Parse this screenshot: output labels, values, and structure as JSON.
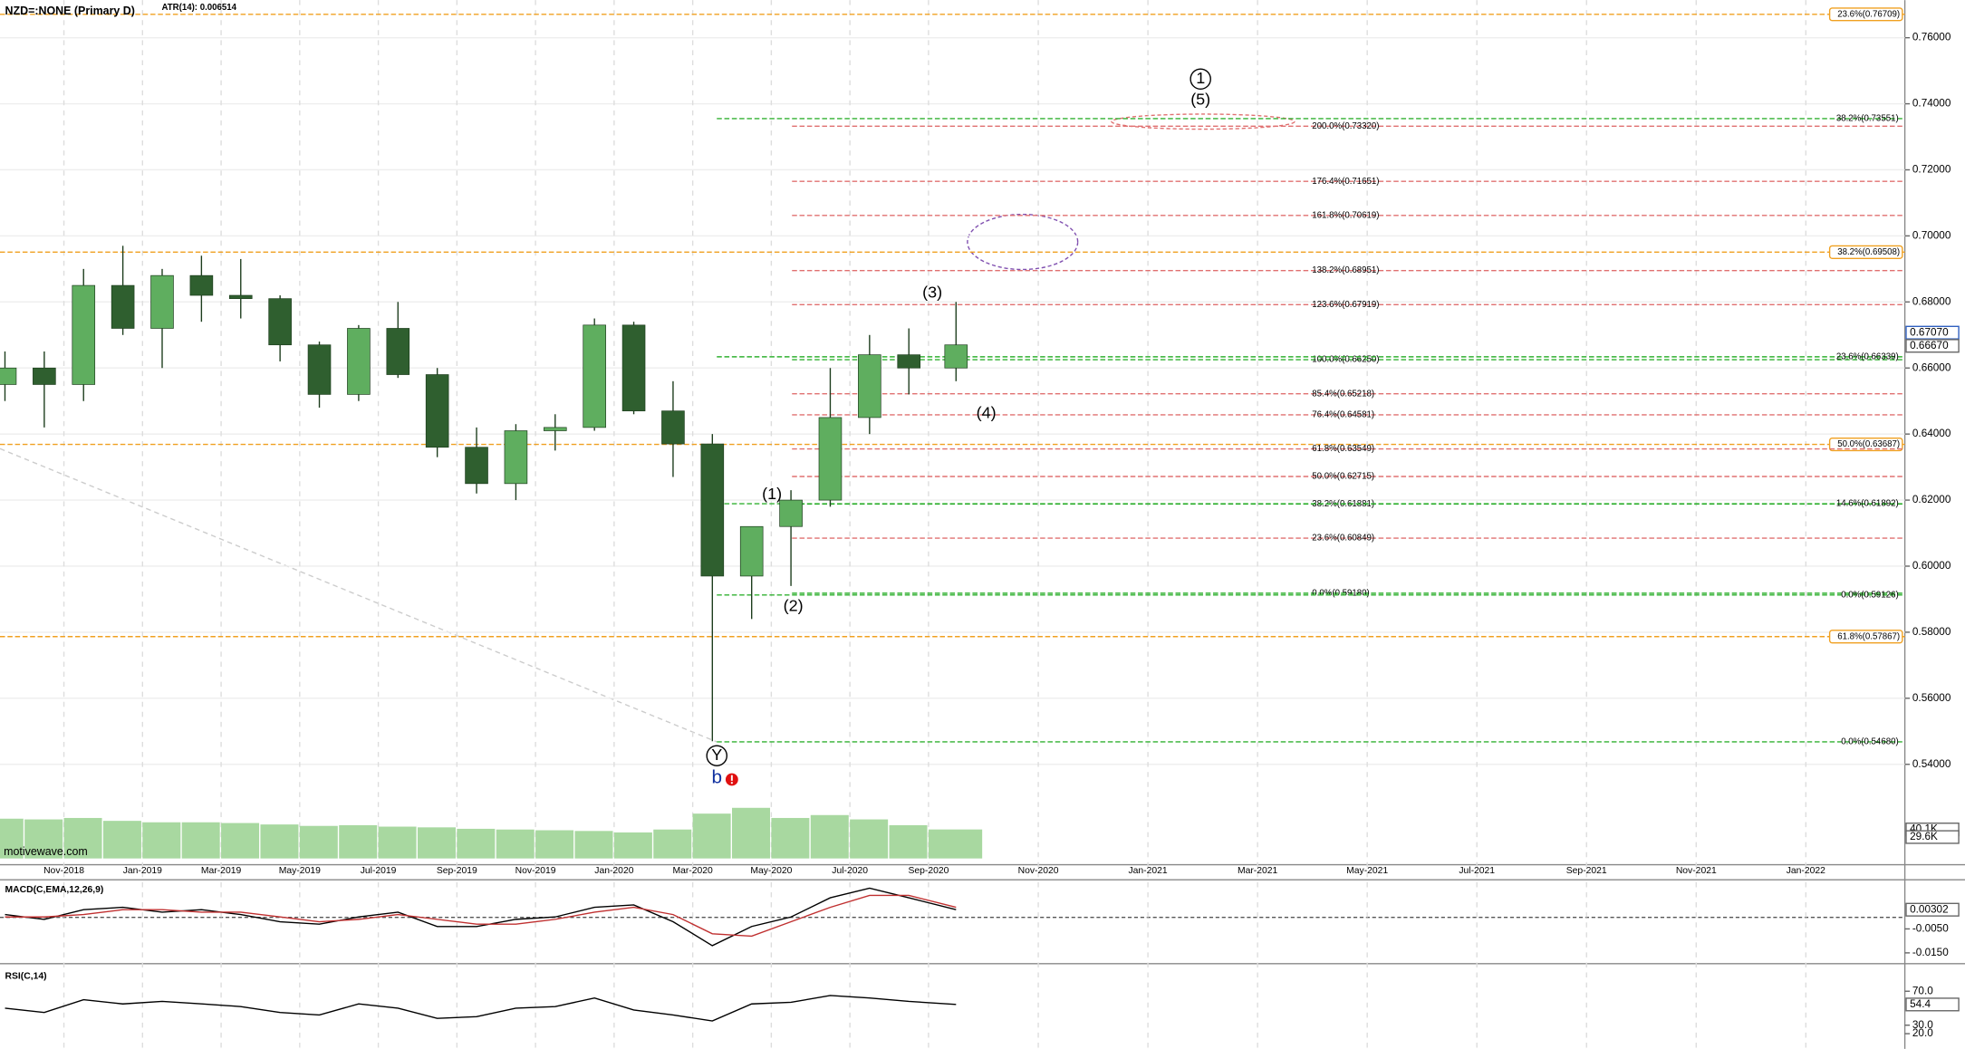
{
  "header": {
    "symbol": "NZD=:NONE (Primary D)",
    "atr": "ATR(14): 0.006514",
    "watermark": "motivewave.com"
  },
  "chart_data": [
    {
      "type": "candlestick",
      "x": [
        "2018-09",
        "2018-10",
        "2018-11",
        "2018-12",
        "2019-01",
        "2019-02",
        "2019-03",
        "2019-04",
        "2019-05",
        "2019-06",
        "2019-07",
        "2019-08",
        "2019-09",
        "2019-10",
        "2019-11",
        "2019-12",
        "2020-01",
        "2020-02",
        "2020-03",
        "2020-04",
        "2020-05",
        "2020-06",
        "2020-07",
        "2020-08",
        "2020-09"
      ],
      "open": [
        0.655,
        0.66,
        0.655,
        0.685,
        0.672,
        0.688,
        0.682,
        0.681,
        0.667,
        0.652,
        0.672,
        0.658,
        0.636,
        0.625,
        0.641,
        0.642,
        0.673,
        0.647,
        0.637,
        0.597,
        0.612,
        0.62,
        0.645,
        0.664,
        0.66
      ],
      "high": [
        0.665,
        0.665,
        0.69,
        0.697,
        0.69,
        0.694,
        0.693,
        0.682,
        0.668,
        0.673,
        0.68,
        0.66,
        0.642,
        0.643,
        0.646,
        0.675,
        0.674,
        0.656,
        0.64,
        0.611,
        0.623,
        0.66,
        0.67,
        0.672,
        0.68
      ],
      "low": [
        0.65,
        0.642,
        0.65,
        0.67,
        0.66,
        0.674,
        0.675,
        0.662,
        0.648,
        0.65,
        0.657,
        0.633,
        0.622,
        0.62,
        0.635,
        0.641,
        0.646,
        0.627,
        0.547,
        0.584,
        0.594,
        0.618,
        0.64,
        0.652,
        0.656
      ],
      "close": [
        0.66,
        0.655,
        0.685,
        0.672,
        0.688,
        0.682,
        0.681,
        0.667,
        0.652,
        0.672,
        0.658,
        0.636,
        0.625,
        0.641,
        0.642,
        0.673,
        0.647,
        0.637,
        0.597,
        0.612,
        0.62,
        0.645,
        0.664,
        0.66,
        0.667
      ],
      "up_color": "#5fae5f",
      "down_color": "#2f5f2f",
      "ylim": [
        0.5096,
        0.7714
      ],
      "yticks": [
        {
          "value": 0.54,
          "label": "0.54000"
        },
        {
          "value": 0.56,
          "label": "0.56000"
        },
        {
          "value": 0.58,
          "label": "0.58000"
        },
        {
          "value": 0.6,
          "label": "0.60000"
        },
        {
          "value": 0.62,
          "label": "0.62000"
        },
        {
          "value": 0.64,
          "label": "0.64000"
        },
        {
          "value": 0.66,
          "label": "0.66000"
        },
        {
          "value": 0.68,
          "label": "0.68000"
        },
        {
          "value": 0.7,
          "label": "0.70000"
        },
        {
          "value": 0.72,
          "label": "0.72000"
        },
        {
          "value": 0.74,
          "label": "0.74000"
        },
        {
          "value": 0.76,
          "label": "0.76000"
        }
      ],
      "xticks": [
        {
          "value": "2018-11",
          "label": "Nov-2018"
        },
        {
          "value": "2019-01",
          "label": "Jan-2019"
        },
        {
          "value": "2019-03",
          "label": "Mar-2019"
        },
        {
          "value": "2019-05",
          "label": "May-2019"
        },
        {
          "value": "2019-07",
          "label": "Jul-2019"
        },
        {
          "value": "2019-09",
          "label": "Sep-2019"
        },
        {
          "value": "2019-11",
          "label": "Nov-2019"
        },
        {
          "value": "2020-01",
          "label": "Jan-2020"
        },
        {
          "value": "2020-03",
          "label": "Mar-2020"
        },
        {
          "value": "2020-05",
          "label": "May-2020"
        },
        {
          "value": "2020-07",
          "label": "Jul-2020"
        },
        {
          "value": "2020-09",
          "label": "Sep-2020"
        },
        {
          "value": "2020-11",
          "label": "Nov-2020"
        },
        {
          "value": "2021-01",
          "label": "Jan-2021"
        },
        {
          "value": "2021-03",
          "label": "Mar-2021"
        },
        {
          "value": "2021-05",
          "label": "May-2021"
        },
        {
          "value": "2021-07",
          "label": "Jul-2021"
        },
        {
          "value": "2021-09",
          "label": "Sep-2021"
        },
        {
          "value": "2021-11",
          "label": "Nov-2021"
        },
        {
          "value": "2022-01",
          "label": "Jan-2022"
        }
      ],
      "grid": true,
      "value_tags": [
        {
          "value": 0.6707,
          "label": "0.67070"
        },
        {
          "value": 0.6667,
          "label": "0.66670"
        }
      ],
      "levels_full": [
        {
          "value": 0.76709,
          "label": "23.6%(0.76709)",
          "color": "#f0a020"
        },
        {
          "value": 0.69508,
          "label": "38.2%(0.69508)",
          "color": "#f0a020"
        },
        {
          "value": 0.63687,
          "label": "50.0%(0.63687)",
          "color": "#f0a020"
        },
        {
          "value": 0.57867,
          "label": "61.8%(0.57867)",
          "color": "#f0a020"
        }
      ],
      "levels_projection": [
        {
          "value": 0.7332,
          "label": "200.0%(0.73320)",
          "color": "#e07070"
        },
        {
          "value": 0.71651,
          "label": "176.4%(0.71651)",
          "color": "#e07070"
        },
        {
          "value": 0.70619,
          "label": "161.8%(0.70619)",
          "color": "#e07070"
        },
        {
          "value": 0.68951,
          "label": "138.2%(0.68951)",
          "color": "#e07070"
        },
        {
          "value": 0.67919,
          "label": "123.6%(0.67919)",
          "color": "#e07070"
        },
        {
          "value": 0.6625,
          "label": "100.0%(0.66250)",
          "color": "#30b030"
        },
        {
          "value": 0.65218,
          "label": "85.4%(0.65218)",
          "color": "#e07070"
        },
        {
          "value": 0.64581,
          "label": "76.4%(0.64581)",
          "color": "#e07070"
        },
        {
          "value": 0.63549,
          "label": "61.8%(0.63549)",
          "color": "#e07070"
        },
        {
          "value": 0.62715,
          "label": "50.0%(0.62715)",
          "color": "#e07070"
        },
        {
          "value": 0.61881,
          "label": "38.2%(0.61881)",
          "color": "#30b030"
        },
        {
          "value": 0.60849,
          "label": "23.6%(0.60849)",
          "color": "#e07070"
        },
        {
          "value": 0.5918,
          "label": "0.0%(0.59180)",
          "color": "#30b030"
        }
      ],
      "levels_retrace": [
        {
          "value": 0.73551,
          "label": "38.2%(0.73551)",
          "color": "#30b030"
        },
        {
          "value": 0.66339,
          "label": "23.6%(0.66339)",
          "color": "#30b030"
        },
        {
          "value": 0.61892,
          "label": "14.6%(0.61892)",
          "color": "#30b030"
        },
        {
          "value": 0.59126,
          "label": "0.0%(0.59126)",
          "color": "#30b030"
        },
        {
          "value": 0.5468,
          "label": "0.0%(0.54680)",
          "color": "#30b030"
        }
      ],
      "wave_labels": [
        "1",
        "(5)",
        "(3)",
        "(4)",
        "(1)",
        "(2)",
        "Y",
        "b"
      ]
    },
    {
      "type": "bar",
      "x": [
        "2018-09",
        "2018-10",
        "2018-11",
        "2018-12",
        "2019-01",
        "2019-02",
        "2019-03",
        "2019-04",
        "2019-05",
        "2019-06",
        "2019-07",
        "2019-08",
        "2019-09",
        "2019-10",
        "2019-11",
        "2019-12",
        "2020-01",
        "2020-02",
        "2020-03",
        "2020-04",
        "2020-05",
        "2020-06",
        "2020-07",
        "2020-08",
        "2020-09"
      ],
      "values": [
        55,
        54,
        56,
        52,
        50,
        50,
        49,
        47,
        45,
        46,
        44,
        43,
        41,
        40,
        39,
        38,
        36,
        40,
        62,
        70,
        56,
        60,
        54,
        46,
        40.1
      ],
      "color": "#a8d8a0",
      "ylim": [
        0,
        78
      ],
      "value_tags": [
        {
          "value": 40.1,
          "label": "40.1K"
        },
        {
          "value": 29.6,
          "label": "29.6K"
        }
      ]
    },
    {
      "type": "line",
      "title": "MACD(C,EMA,12,26,9)",
      "x": [
        "2018-09",
        "2018-10",
        "2018-11",
        "2018-12",
        "2019-01",
        "2019-02",
        "2019-03",
        "2019-04",
        "2019-05",
        "2019-06",
        "2019-07",
        "2019-08",
        "2019-09",
        "2019-10",
        "2019-11",
        "2019-12",
        "2020-01",
        "2020-02",
        "2020-03",
        "2020-04",
        "2020-05",
        "2020-06",
        "2020-07",
        "2020-08",
        "2020-09"
      ],
      "series": [
        {
          "name": "MACD",
          "color": "#000000",
          "values": [
            0.001,
            -0.001,
            0.003,
            0.004,
            0.002,
            0.003,
            0.001,
            -0.002,
            -0.003,
            0.0,
            0.002,
            -0.004,
            -0.004,
            -0.001,
            0.0,
            0.004,
            0.005,
            -0.002,
            -0.012,
            -0.004,
            0.0,
            0.008,
            0.012,
            0.008,
            0.00302
          ]
        },
        {
          "name": "Signal",
          "color": "#c03030",
          "values": [
            0.0,
            0.0,
            0.001,
            0.003,
            0.003,
            0.002,
            0.002,
            0.0,
            -0.002,
            -0.001,
            0.001,
            -0.001,
            -0.003,
            -0.003,
            -0.001,
            0.002,
            0.004,
            0.001,
            -0.007,
            -0.008,
            -0.002,
            0.004,
            0.009,
            0.009,
            0.004
          ]
        }
      ],
      "ylim": [
        -0.019,
        0.015
      ],
      "yticks": [
        {
          "value": -0.005,
          "label": "-0.0050"
        },
        {
          "value": -0.015,
          "label": "-0.0150"
        }
      ],
      "value_tags": [
        {
          "value": 0.00302,
          "label": "0.00302"
        }
      ]
    },
    {
      "type": "line",
      "title": "RSI(C,14)",
      "x": [
        "2018-09",
        "2018-10",
        "2018-11",
        "2018-12",
        "2019-01",
        "2019-02",
        "2019-03",
        "2019-04",
        "2019-05",
        "2019-06",
        "2019-07",
        "2019-08",
        "2019-09",
        "2019-10",
        "2019-11",
        "2019-12",
        "2020-01",
        "2020-02",
        "2020-03",
        "2020-04",
        "2020-05",
        "2020-06",
        "2020-07",
        "2020-08",
        "2020-09"
      ],
      "series": [
        {
          "name": "RSI",
          "color": "#000000",
          "values": [
            50,
            45,
            60,
            55,
            58,
            55,
            52,
            45,
            42,
            55,
            50,
            38,
            40,
            50,
            52,
            62,
            48,
            42,
            35,
            55,
            57,
            65,
            62,
            58,
            54.4
          ]
        }
      ],
      "ylim": [
        5,
        98
      ],
      "yticks": [
        {
          "value": 70,
          "label": "70.0"
        },
        {
          "value": 30,
          "label": "30.0"
        },
        {
          "value": 20,
          "label": "20.0"
        }
      ],
      "value_tags": [
        {
          "value": 54.4,
          "label": "54.4"
        }
      ]
    }
  ]
}
